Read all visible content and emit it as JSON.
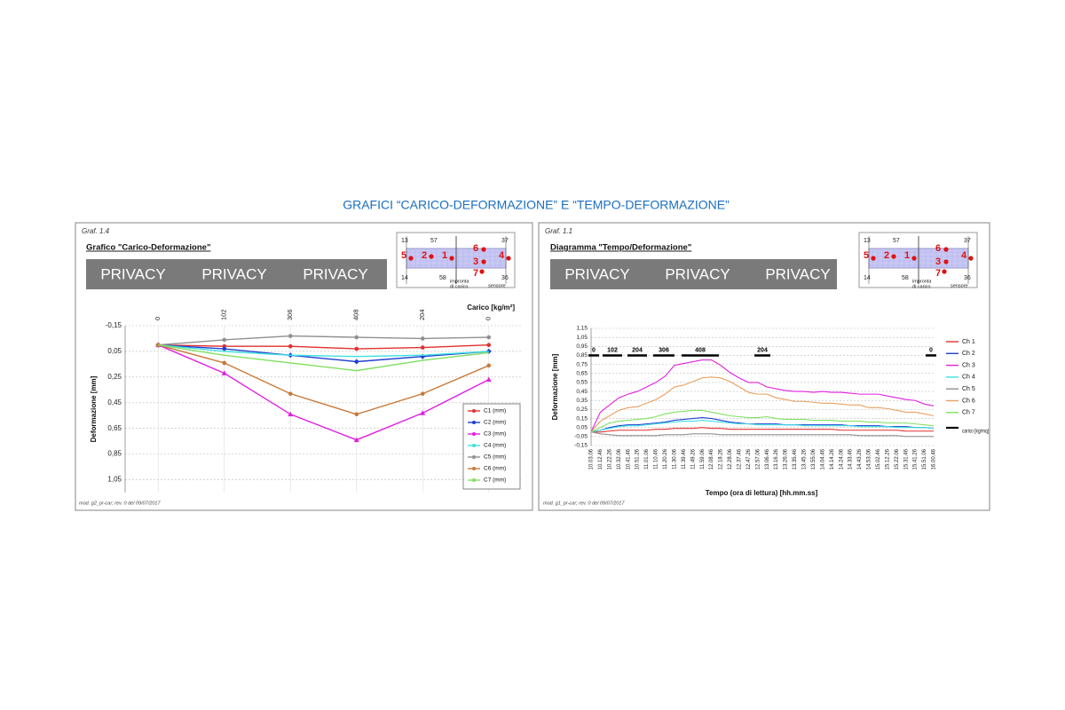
{
  "title": "GRAFICI “CARICO-DEFORMAZIONE” E “TEMPO-DEFORMAZIONE”",
  "panels": [
    {
      "graf": "Graf. 1.4",
      "heading": "Grafico \"Carico-Deformazione\"",
      "privacy": [
        "PRIVACY",
        "PRIVACY",
        "PRIVACY"
      ],
      "footer": "mod. g2_pr-car; rev. 0 del 09/07/2017"
    },
    {
      "graf": "Graf. 1.1",
      "heading": "Diagramma \"Tempo/Deformazione\"",
      "privacy": [
        "PRIVACY",
        "PRIVACY",
        "PRIVACY"
      ],
      "footer": "mod. g1_pr-car; rev. 0 del 09/07/2017"
    }
  ],
  "sensor_diagram": {
    "corner_labels": [
      "13",
      "57",
      "37",
      "14",
      "58",
      "36"
    ],
    "sensor_labels": [
      "5",
      "2",
      "1",
      "6",
      "3",
      "4",
      "7"
    ],
    "footprint_label": [
      "impronta",
      "di carico"
    ],
    "sensor_label": "sensore"
  },
  "chart_data": [
    {
      "type": "line",
      "x_label": "Carico [kg/m²]",
      "y_label": "Deformazione [mm]",
      "categories": [
        "0",
        "102",
        "306",
        "408",
        "204",
        "0"
      ],
      "ylim": [
        -0.15,
        1.15
      ],
      "y_inverted": true,
      "grid": true,
      "yticks": [
        {
          "value": -0.15,
          "label": "-0,15"
        },
        {
          "value": 0.05,
          "label": "0,05"
        },
        {
          "value": 0.25,
          "label": "0,25"
        },
        {
          "value": 0.45,
          "label": "0,45"
        },
        {
          "value": 0.65,
          "label": "0,65"
        },
        {
          "value": 0.85,
          "label": "0,85"
        },
        {
          "value": 1.05,
          "label": "1,05"
        }
      ],
      "series": [
        {
          "name": "C1 (mm)",
          "color": "#e03030",
          "marker": "circle",
          "values": [
            0,
            0.01,
            0.01,
            0.03,
            0.02,
            0.0
          ]
        },
        {
          "name": "C2 (mm)",
          "color": "#1f3fd0",
          "marker": "diamond",
          "values": [
            0,
            0.03,
            0.08,
            0.13,
            0.09,
            0.05
          ]
        },
        {
          "name": "C3 (mm)",
          "color": "#e020e0",
          "marker": "triangle",
          "values": [
            0,
            0.22,
            0.54,
            0.74,
            0.53,
            0.27
          ]
        },
        {
          "name": "C4 (mm)",
          "color": "#40e0e0",
          "marker": "none",
          "values": [
            0,
            0.05,
            0.08,
            0.09,
            0.08,
            0.05
          ]
        },
        {
          "name": "C5 (mm)",
          "color": "#909090",
          "marker": "circle",
          "values": [
            0,
            -0.04,
            -0.07,
            -0.06,
            -0.05,
            -0.06
          ]
        },
        {
          "name": "C6 (mm)",
          "color": "#c87838",
          "marker": "circle",
          "values": [
            0,
            0.14,
            0.38,
            0.54,
            0.38,
            0.16
          ]
        },
        {
          "name": "C7 (mm)",
          "color": "#80e060",
          "marker": "none",
          "values": [
            0,
            0.08,
            0.14,
            0.2,
            0.12,
            0.06
          ]
        }
      ]
    },
    {
      "type": "line",
      "x_label": "Tempo (ora di lettura) [hh.mm.ss]",
      "y_label": "Deformazione [mm]",
      "categories": [
        "10.03.06",
        "10.12.46",
        "10.22.26",
        "10.32.06",
        "10.41.46",
        "10.51.26",
        "11.01.06",
        "11.10.46",
        "11.20.26",
        "11.30.06",
        "11.39.46",
        "11.49.26",
        "11.59.06",
        "12.08.46",
        "12.18.26",
        "12.28.06",
        "12.37.46",
        "12.47.26",
        "12.57.06",
        "13.06.46",
        "13.16.26",
        "13.26.06",
        "13.35.46",
        "13.45.26",
        "13.55.06",
        "14.04.46",
        "14.14.26",
        "14.24.06",
        "14.33.46",
        "14.43.26",
        "14.53.06",
        "15.02.46",
        "15.12.26",
        "15.22.06",
        "15.31.46",
        "15.41.26",
        "15.51.06",
        "16.00.46"
      ],
      "ylim": [
        -0.15,
        1.15
      ],
      "y_inverted": false,
      "grid": true,
      "yticks": [
        {
          "value": -0.15,
          "label": "-0,15"
        },
        {
          "value": -0.05,
          "label": "-0,05"
        },
        {
          "value": 0.05,
          "label": "0,05"
        },
        {
          "value": 0.15,
          "label": "0,15"
        },
        {
          "value": 0.25,
          "label": "0,25"
        },
        {
          "value": 0.35,
          "label": "0,35"
        },
        {
          "value": 0.45,
          "label": "0,45"
        },
        {
          "value": 0.55,
          "label": "0,55"
        },
        {
          "value": 0.65,
          "label": "0,65"
        },
        {
          "value": 0.75,
          "label": "0,75"
        },
        {
          "value": 0.85,
          "label": "0,85"
        },
        {
          "value": 0.95,
          "label": "0,95"
        },
        {
          "value": 1.05,
          "label": "1,05"
        },
        {
          "value": 1.15,
          "label": "1,15"
        }
      ],
      "load": {
        "name": "carico [kg/mq]",
        "color": "#000000",
        "labels": [
          "0",
          "102",
          "204",
          "306",
          "408",
          "204",
          "0"
        ]
      },
      "series": [
        {
          "name": "Ch 1",
          "color": "#e03030",
          "values": [
            0,
            0,
            0.01,
            0.02,
            0.02,
            0.02,
            0.02,
            0.03,
            0.03,
            0.04,
            0.04,
            0.04,
            0.05,
            0.04,
            0.04,
            0.03,
            0.03,
            0.03,
            0.03,
            0.03,
            0.03,
            0.03,
            0.03,
            0.03,
            0.03,
            0.03,
            0.03,
            0.02,
            0.02,
            0.02,
            0.02,
            0.02,
            0.02,
            0.02,
            0.01,
            0.01,
            0.01,
            0.01
          ]
        },
        {
          "name": "Ch 2",
          "color": "#1f3fd0",
          "values": [
            0,
            0.02,
            0.05,
            0.07,
            0.08,
            0.08,
            0.09,
            0.1,
            0.11,
            0.13,
            0.14,
            0.15,
            0.16,
            0.15,
            0.13,
            0.11,
            0.1,
            0.09,
            0.09,
            0.09,
            0.09,
            0.08,
            0.08,
            0.08,
            0.08,
            0.08,
            0.08,
            0.08,
            0.07,
            0.07,
            0.07,
            0.07,
            0.06,
            0.06,
            0.06,
            0.05,
            0.05,
            0.04
          ]
        },
        {
          "name": "Ch 3",
          "color": "#e020e0",
          "values": [
            0,
            0.22,
            0.3,
            0.38,
            0.42,
            0.45,
            0.5,
            0.55,
            0.62,
            0.74,
            0.76,
            0.78,
            0.8,
            0.8,
            0.74,
            0.66,
            0.6,
            0.55,
            0.55,
            0.5,
            0.48,
            0.46,
            0.45,
            0.45,
            0.44,
            0.45,
            0.44,
            0.44,
            0.43,
            0.42,
            0.42,
            0.42,
            0.4,
            0.38,
            0.36,
            0.35,
            0.31,
            0.29
          ]
        },
        {
          "name": "Ch 4",
          "color": "#40e0e0",
          "values": [
            0,
            0.02,
            0.04,
            0.06,
            0.07,
            0.07,
            0.08,
            0.09,
            0.1,
            0.11,
            0.12,
            0.12,
            0.13,
            0.12,
            0.11,
            0.1,
            0.09,
            0.09,
            0.08,
            0.08,
            0.08,
            0.08,
            0.08,
            0.07,
            0.07,
            0.07,
            0.07,
            0.07,
            0.07,
            0.06,
            0.06,
            0.06,
            0.06,
            0.05,
            0.05,
            0.05,
            0.05,
            0.04
          ]
        },
        {
          "name": "Ch 5",
          "color": "#909090",
          "values": [
            0,
            -0.02,
            -0.03,
            -0.04,
            -0.04,
            -0.04,
            -0.04,
            -0.04,
            -0.03,
            -0.03,
            -0.03,
            -0.02,
            -0.02,
            -0.02,
            -0.03,
            -0.03,
            -0.03,
            -0.03,
            -0.03,
            -0.03,
            -0.03,
            -0.03,
            -0.03,
            -0.03,
            -0.03,
            -0.03,
            -0.03,
            -0.03,
            -0.03,
            -0.04,
            -0.04,
            -0.04,
            -0.04,
            -0.04,
            -0.05,
            -0.05,
            -0.05,
            -0.05
          ]
        },
        {
          "name": "Ch 6",
          "color": "#e8a060",
          "values": [
            0,
            0.12,
            0.18,
            0.24,
            0.27,
            0.28,
            0.32,
            0.36,
            0.42,
            0.5,
            0.52,
            0.56,
            0.6,
            0.61,
            0.6,
            0.56,
            0.5,
            0.44,
            0.42,
            0.42,
            0.38,
            0.36,
            0.34,
            0.34,
            0.33,
            0.32,
            0.32,
            0.31,
            0.3,
            0.3,
            0.27,
            0.27,
            0.26,
            0.24,
            0.22,
            0.22,
            0.2,
            0.18
          ]
        },
        {
          "name": "Ch 7",
          "color": "#80e060",
          "values": [
            0,
            0.05,
            0.1,
            0.12,
            0.13,
            0.14,
            0.15,
            0.17,
            0.2,
            0.22,
            0.23,
            0.24,
            0.24,
            0.22,
            0.2,
            0.18,
            0.17,
            0.16,
            0.16,
            0.17,
            0.15,
            0.14,
            0.14,
            0.14,
            0.13,
            0.13,
            0.13,
            0.12,
            0.12,
            0.12,
            0.11,
            0.11,
            0.1,
            0.1,
            0.1,
            0.09,
            0.08,
            0.07
          ]
        }
      ]
    }
  ]
}
